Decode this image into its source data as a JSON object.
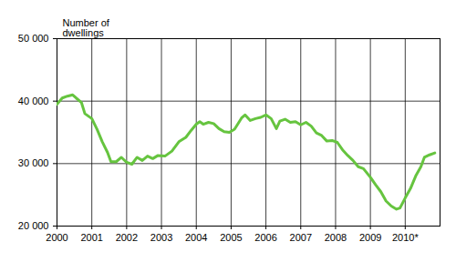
{
  "chart_data": {
    "type": "line",
    "y_label": "Number of dwellings",
    "color": "#66c43f",
    "grid": true,
    "xlim": [
      2000,
      2011
    ],
    "xticks": [
      2000,
      2001,
      2002,
      2003,
      2004,
      2005,
      2006,
      2007,
      2008,
      2009,
      {
        "value": 2010,
        "label": "2010*"
      }
    ],
    "ylim": [
      20000,
      50000
    ],
    "yticks": [
      {
        "value": 20000,
        "label": "20 000"
      },
      {
        "value": 30000,
        "label": "30 000"
      },
      {
        "value": 40000,
        "label": "40 000"
      },
      {
        "value": 50000,
        "label": "50 000"
      }
    ],
    "x": [
      2000.0,
      2000.15,
      2000.3,
      2000.45,
      2000.55,
      2000.7,
      2000.8,
      2001.0,
      2001.15,
      2001.3,
      2001.45,
      2001.55,
      2001.7,
      2001.85,
      2002.0,
      2002.15,
      2002.3,
      2002.45,
      2002.6,
      2002.75,
      2002.9,
      2003.1,
      2003.3,
      2003.5,
      2003.7,
      2003.85,
      2004.0,
      2004.1,
      2004.2,
      2004.35,
      2004.5,
      2004.65,
      2004.8,
      2004.95,
      2005.1,
      2005.3,
      2005.4,
      2005.55,
      2005.7,
      2005.85,
      2006.0,
      2006.15,
      2006.3,
      2006.4,
      2006.55,
      2006.7,
      2006.85,
      2007.0,
      2007.15,
      2007.3,
      2007.45,
      2007.6,
      2007.75,
      2007.9,
      2008.05,
      2008.2,
      2008.35,
      2008.5,
      2008.65,
      2008.8,
      2009.0,
      2009.15,
      2009.3,
      2009.45,
      2009.6,
      2009.75,
      2009.85,
      2010.0,
      2010.15,
      2010.3,
      2010.45,
      2010.55,
      2010.7,
      2010.85
    ],
    "values": [
      39500,
      40500,
      40800,
      41000,
      40500,
      39800,
      38000,
      37200,
      35500,
      33500,
      31800,
      30300,
      30300,
      31000,
      30200,
      29900,
      31000,
      30500,
      31200,
      30800,
      31300,
      31200,
      32000,
      33500,
      34200,
      35300,
      36300,
      36700,
      36300,
      36600,
      36400,
      35600,
      35100,
      35000,
      35500,
      37300,
      37800,
      36900,
      37200,
      37400,
      37800,
      37200,
      35600,
      36800,
      37100,
      36600,
      36700,
      36200,
      36600,
      36000,
      34900,
      34500,
      33600,
      33700,
      33400,
      32200,
      31300,
      30500,
      29500,
      29200,
      27800,
      26600,
      25500,
      24000,
      23200,
      22700,
      22900,
      24500,
      26000,
      28000,
      29500,
      31000,
      31400,
      31700
    ]
  }
}
